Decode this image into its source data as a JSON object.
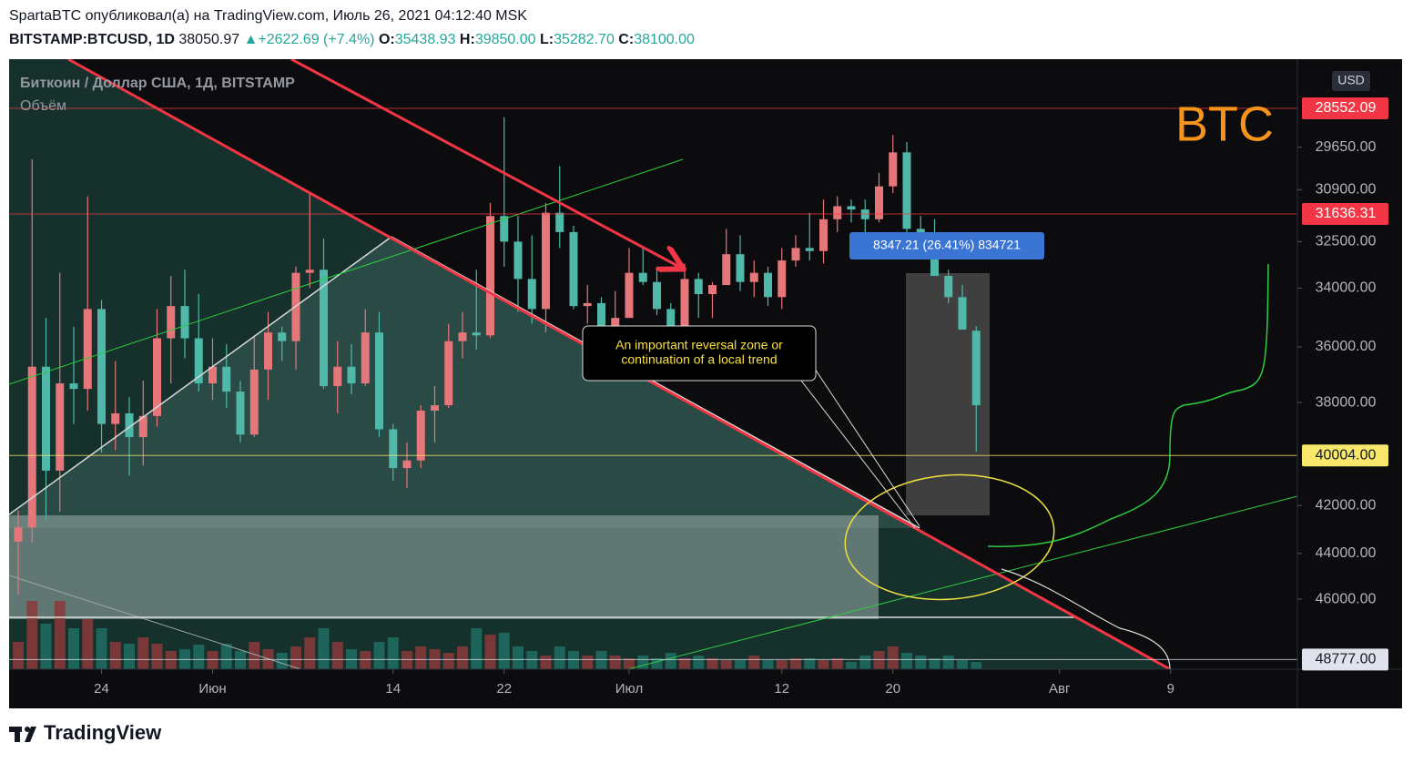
{
  "header": {
    "author_line": "SpartaBTC опубликовал(а) на TradingView.com, Июль 26, 2021 04:12:40 MSK",
    "symbol": "BITSTAMP:BTCUSD, 1D",
    "price": "38050.97",
    "arrow": "▲",
    "change": "+2622.69 (+7.4%)",
    "ohlc": [
      {
        "label": "O:",
        "value": "35438.93"
      },
      {
        "label": "H:",
        "value": "39850.00"
      },
      {
        "label": "L:",
        "value": "35282.70"
      },
      {
        "label": "C:",
        "value": "38100.00"
      }
    ]
  },
  "chart_data": {
    "type": "candlestick",
    "legend_title": "Биткоин / Доллар США, 1Д, BITSTAMP",
    "volume_label": "Объём",
    "watermark": "BTC",
    "currency": "USD",
    "measure_label": "8347.21 (26.41%) 834721",
    "annotation": [
      "An important reversal zone or",
      "continuation of a local trend"
    ],
    "log_scale": true,
    "ylim": [
      27220,
      49240
    ],
    "yticks": [
      {
        "value": 46000,
        "label": "46000.00"
      },
      {
        "value": 44000,
        "label": "44000.00"
      },
      {
        "value": 42000,
        "label": "42000.00"
      },
      {
        "value": 38000,
        "label": "38000.00"
      },
      {
        "value": 36000,
        "label": "36000.00"
      },
      {
        "value": 34000,
        "label": "34000.00"
      },
      {
        "value": 32500,
        "label": "32500.00"
      },
      {
        "value": 30900,
        "label": "30900.00"
      },
      {
        "value": 29650,
        "label": "29650.00"
      }
    ],
    "price_levels": [
      {
        "value": 48777,
        "label": "48777.00",
        "color": "#e0e3eb"
      },
      {
        "value": 40004,
        "label": "40004.00",
        "color": "#f7e76a"
      },
      {
        "value": 31636.31,
        "label": "31636.31",
        "color": "#f23645"
      },
      {
        "value": 28552.09,
        "label": "28552.09",
        "color": "#f23645"
      }
    ],
    "xticks": [
      {
        "value": 6,
        "label": "24"
      },
      {
        "value": 14,
        "label": "Июн"
      },
      {
        "value": 27,
        "label": "14"
      },
      {
        "value": 35,
        "label": "22"
      },
      {
        "value": 44,
        "label": "Июл"
      },
      {
        "value": 55,
        "label": "12"
      },
      {
        "value": 63,
        "label": "20"
      },
      {
        "value": 75,
        "label": "Авг"
      },
      {
        "value": 83,
        "label": "9"
      }
    ],
    "up_color": "#4fb8a8",
    "down_color": "#e5767a",
    "open": [
      43500,
      42900,
      36700,
      40600,
      37300,
      37500,
      34700,
      38800,
      38400,
      39300,
      38500,
      35700,
      34600,
      35700,
      37300,
      36700,
      37600,
      39200,
      36800,
      35500,
      35800,
      33500,
      33400,
      37400,
      36700,
      37300,
      35500,
      39000,
      40500,
      40200,
      38300,
      38100,
      35800,
      35500,
      35600,
      31700,
      32500,
      33700,
      34700,
      31600,
      32200,
      34600,
      34500,
      35900,
      35000,
      33500,
      33800,
      34700,
      35300,
      33700,
      34200,
      33900,
      32900,
      33800,
      33500,
      34300,
      33100,
      32700,
      32800,
      31800,
      31400,
      31500,
      31800,
      30800,
      29800,
      32100,
      32300,
      33600,
      34300,
      35438.93
    ],
    "high": [
      45800,
      43550,
      42600,
      42250,
      38800,
      38300,
      39900,
      39800,
      40800,
      40400,
      38900,
      37300,
      36400,
      37600,
      37900,
      38200,
      39500,
      39300,
      37900,
      36500,
      36800,
      34000,
      37500,
      38400,
      37700,
      37400,
      39300,
      41000,
      41300,
      40500,
      39500,
      38200,
      36400,
      36100,
      35700,
      33300,
      34800,
      35200,
      35500,
      32700,
      34700,
      35200,
      36600,
      36000,
      35000,
      33900,
      34900,
      35900,
      35300,
      35000,
      35000,
      33900,
      34100,
      34300,
      34600,
      34700,
      33300,
      33100,
      33200,
      32200,
      31900,
      32400,
      31900,
      31000,
      32800,
      32600,
      33600,
      34500,
      35400,
      39850
    ],
    "low": [
      42200,
      30000,
      35000,
      33500,
      35300,
      31100,
      34400,
      36500,
      37800,
      37200,
      34700,
      33600,
      33400,
      34200,
      35700,
      35900,
      37200,
      35600,
      34800,
      35300,
      33300,
      31000,
      32400,
      35800,
      35900,
      34700,
      34800,
      38800,
      39500,
      38100,
      37400,
      35200,
      34800,
      33400,
      31300,
      28800,
      31700,
      32300,
      31300,
      30200,
      32000,
      33900,
      34300,
      34100,
      32700,
      32700,
      33300,
      34500,
      33200,
      33500,
      33800,
      32100,
      32300,
      33100,
      33300,
      32700,
      32300,
      31600,
      31200,
      31100,
      31200,
      31200,
      30400,
      29300,
      29500,
      31700,
      31800,
      33400,
      33900,
      35282.7
    ],
    "close": [
      42900,
      36700,
      40600,
      37300,
      37500,
      34700,
      38800,
      38400,
      39300,
      38500,
      35700,
      34600,
      35700,
      37300,
      36700,
      37600,
      39200,
      36800,
      35500,
      35800,
      33500,
      33400,
      37400,
      36700,
      37300,
      35500,
      39000,
      40500,
      40200,
      38300,
      38100,
      35800,
      35500,
      35600,
      31700,
      32500,
      33700,
      34700,
      31600,
      32200,
      34600,
      34500,
      35900,
      35000,
      33500,
      33800,
      34700,
      35300,
      33700,
      34200,
      33900,
      32900,
      33800,
      33500,
      34300,
      33100,
      32700,
      32800,
      31800,
      31400,
      31500,
      31800,
      30800,
      29800,
      32100,
      32300,
      33600,
      34300,
      35400,
      38100
    ],
    "volume": [
      30,
      75,
      50,
      75,
      45,
      55,
      45,
      30,
      28,
      35,
      28,
      20,
      22,
      27,
      20,
      28,
      20,
      30,
      22,
      18,
      25,
      35,
      45,
      30,
      22,
      20,
      30,
      35,
      20,
      25,
      22,
      18,
      25,
      45,
      38,
      40,
      25,
      20,
      15,
      25,
      20,
      15,
      20,
      15,
      12,
      15,
      12,
      18,
      12,
      15,
      12,
      10,
      10,
      15,
      10,
      10,
      12,
      12,
      10,
      12,
      8,
      15,
      20,
      25,
      18,
      15,
      12,
      15,
      10,
      8
    ],
    "volume_lim": [
      0,
      100
    ]
  },
  "footer": {
    "brand": "TradingView"
  }
}
